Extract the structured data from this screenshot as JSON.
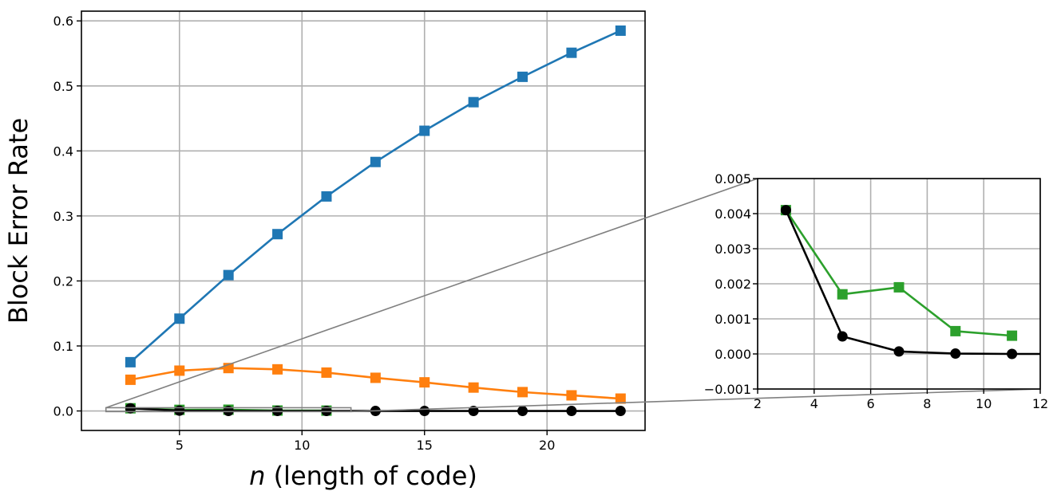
{
  "chart_data": [
    {
      "type": "line",
      "xlabel_italic": "n",
      "xlabel_rest": " (length of code)",
      "ylabel": "Block Error Rate",
      "xlim": [
        1,
        24
      ],
      "ylim": [
        -0.03,
        0.615
      ],
      "x_ticks": [
        5,
        10,
        15,
        20
      ],
      "y_ticks": [
        0.0,
        0.1,
        0.2,
        0.3,
        0.4,
        0.5,
        0.6
      ],
      "y_tick_labels": [
        "0.0",
        "0.1",
        "0.2",
        "0.3",
        "0.4",
        "0.5",
        "0.6"
      ],
      "grid": true,
      "series": [
        {
          "color": "#1f77b4",
          "marker": "square",
          "x": [
            3,
            5,
            7,
            9,
            11,
            13,
            15,
            17,
            19,
            21,
            23
          ],
          "y": [
            0.075,
            0.142,
            0.209,
            0.272,
            0.33,
            0.383,
            0.431,
            0.475,
            0.514,
            0.551,
            0.585
          ]
        },
        {
          "color": "#ff7f0e",
          "marker": "square",
          "x": [
            3,
            5,
            7,
            9,
            11,
            13,
            15,
            17,
            19,
            21,
            23
          ],
          "y": [
            0.048,
            0.062,
            0.066,
            0.064,
            0.059,
            0.051,
            0.044,
            0.036,
            0.029,
            0.024,
            0.019
          ]
        },
        {
          "color": "#2ca02c",
          "marker": "square",
          "x": [
            3,
            5,
            7,
            9,
            11
          ],
          "y": [
            0.0041,
            0.0017,
            0.0019,
            0.00065,
            0.00052
          ]
        },
        {
          "color": "#000000",
          "marker": "circle",
          "x": [
            3,
            5,
            7,
            9,
            11,
            13,
            15,
            17,
            19,
            21,
            23
          ],
          "y": [
            0.0041,
            0.0005,
            7e-05,
            1e-05,
            0.0,
            0.0,
            0.0,
            0.0,
            0.0,
            0.0,
            0.0
          ]
        }
      ],
      "zoom_region": {
        "x": [
          2,
          12
        ],
        "y": [
          -0.001,
          0.005
        ]
      }
    },
    {
      "type": "line",
      "role": "inset-zoom",
      "xlim": [
        2,
        12
      ],
      "ylim": [
        -0.001,
        0.005
      ],
      "x_ticks": [
        2,
        4,
        6,
        8,
        10,
        12
      ],
      "y_ticks": [
        -0.001,
        0.0,
        0.001,
        0.002,
        0.003,
        0.004,
        0.005
      ],
      "y_tick_labels": [
        "−0.001",
        "0.000",
        "0.001",
        "0.002",
        "0.003",
        "0.004",
        "0.005"
      ],
      "grid": true,
      "series": [
        {
          "color": "#2ca02c",
          "marker": "square",
          "x": [
            3,
            5,
            7,
            9,
            11
          ],
          "y": [
            0.0041,
            0.0017,
            0.0019,
            0.00065,
            0.00052
          ]
        },
        {
          "color": "#000000",
          "marker": "circle",
          "x": [
            3,
            5,
            7,
            9,
            11,
            13
          ],
          "y": [
            0.0041,
            0.0005,
            7e-05,
            1e-05,
            0.0,
            0.0
          ]
        }
      ]
    }
  ]
}
